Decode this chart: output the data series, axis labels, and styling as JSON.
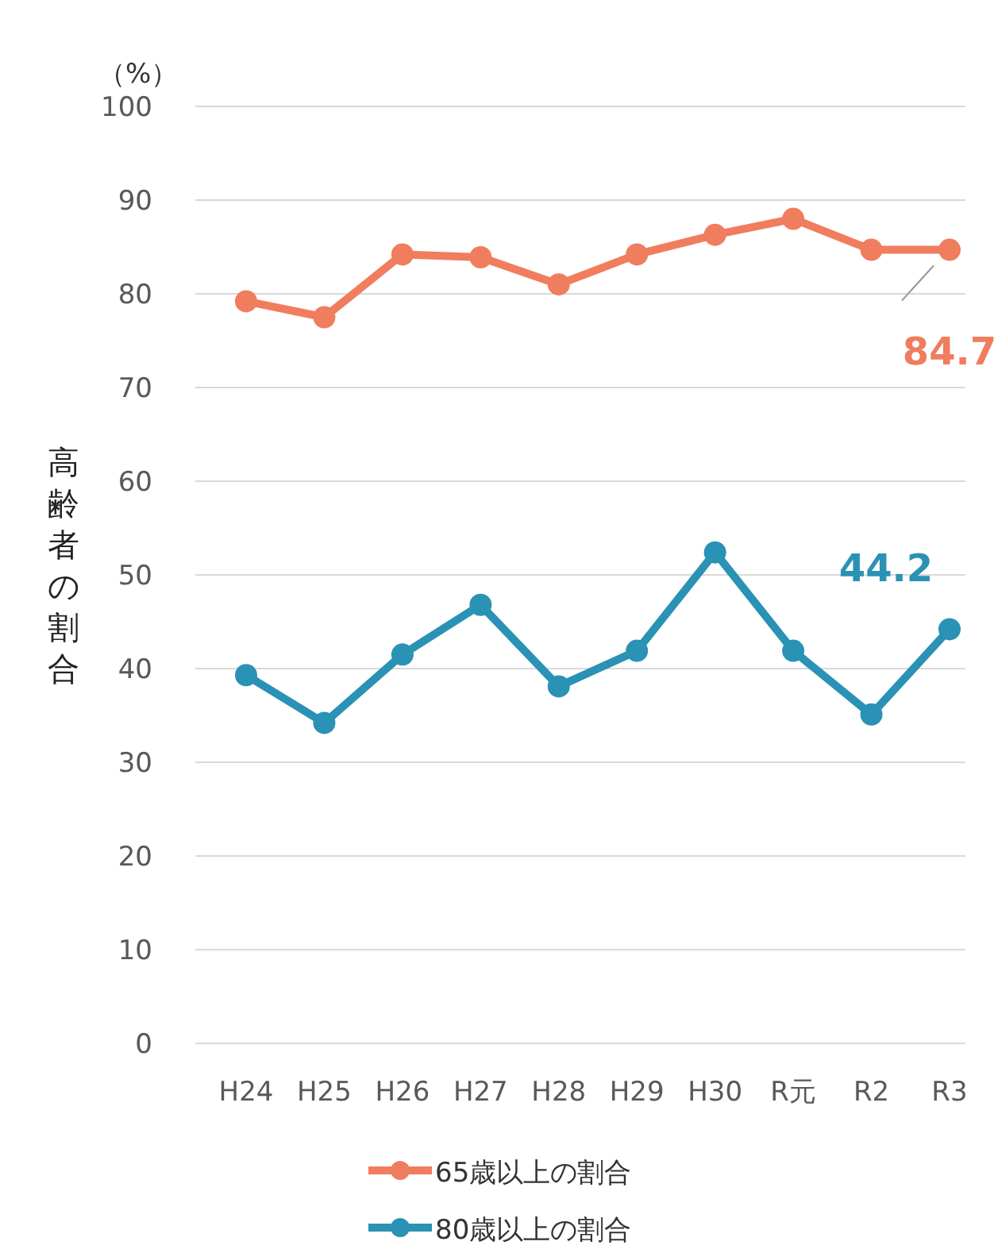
{
  "chart_data": {
    "type": "line",
    "ylabel": "高齢者の割合",
    "categories": [
      "H24",
      "H25",
      "H26",
      "H27",
      "H28",
      "H29",
      "H30",
      "R元",
      "R2",
      "R3"
    ],
    "series": [
      {
        "name": "65歳以上の割合",
        "color": "#f07d5e",
        "values": [
          79.2,
          77.5,
          84.2,
          83.9,
          81,
          84.2,
          86.3,
          88,
          84.7,
          84.7
        ]
      },
      {
        "name": "80歳以上の割合",
        "color": "#2a92b4",
        "values": [
          39.3,
          34.2,
          41.5,
          46.8,
          38.1,
          41.9,
          52.4,
          41.9,
          35.1,
          44.2
        ]
      }
    ],
    "ylim": [
      0,
      100
    ],
    "yticks": [
      0,
      10,
      20,
      30,
      40,
      50,
      60,
      70,
      80,
      90,
      100
    ],
    "grid": "y",
    "legend": "bottom",
    "marker": "circle",
    "line_style": "solid",
    "annotations": [
      "（%）",
      {
        "text": "84.7",
        "x": "R3",
        "y": 84.7
      },
      {
        "text": "44.2",
        "x": "R3",
        "y": 44.2
      }
    ]
  }
}
